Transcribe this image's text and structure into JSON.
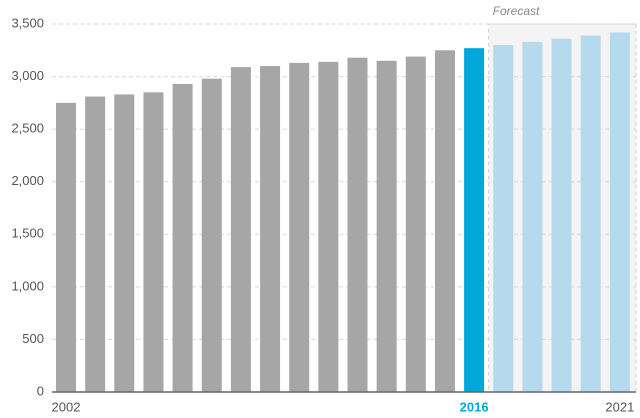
{
  "chart_data": {
    "type": "bar",
    "categories": [
      "2002",
      null,
      null,
      null,
      null,
      null,
      null,
      null,
      null,
      null,
      null,
      null,
      null,
      null,
      "2016",
      null,
      null,
      null,
      null,
      "2021"
    ],
    "values": [
      2750,
      2810,
      2830,
      2850,
      2930,
      2980,
      3090,
      3100,
      3130,
      3140,
      3180,
      3150,
      3190,
      3250,
      3270,
      3300,
      3330,
      3360,
      3390,
      3420
    ],
    "colors": [
      "#a6a6a6",
      "#a6a6a6",
      "#a6a6a6",
      "#a6a6a6",
      "#a6a6a6",
      "#a6a6a6",
      "#a6a6a6",
      "#a6a6a6",
      "#a6a6a6",
      "#a6a6a6",
      "#a6a6a6",
      "#a6a6a6",
      "#a6a6a6",
      "#a6a6a6",
      "#00a9d9",
      "#b5d9ed",
      "#b5d9ed",
      "#b5d9ed",
      "#b5d9ed",
      "#b5d9ed"
    ],
    "ylim": [
      0,
      3500
    ],
    "yticks": [
      0,
      500,
      {
        "value": 1000,
        "label": "1,000"
      },
      {
        "value": 1500,
        "label": "1,500"
      },
      {
        "value": 2000,
        "label": "2,000"
      },
      {
        "value": 2500,
        "label": "2,500"
      },
      {
        "value": 3000,
        "label": "3,000"
      },
      {
        "value": 3500,
        "label": "3,500"
      }
    ],
    "grid": true,
    "annotation": {
      "text": "Forecast",
      "start": 15,
      "end": 19
    }
  }
}
